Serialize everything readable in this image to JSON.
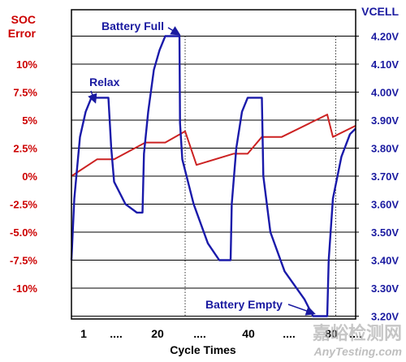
{
  "chart_data": {
    "type": "line",
    "left_axis": {
      "title": [
        "SOC",
        "Error"
      ],
      "ticks": [
        {
          "label": "10%",
          "value": 10
        },
        {
          "label": "7.5%",
          "value": 7.5
        },
        {
          "label": "5%",
          "value": 5
        },
        {
          "label": "2.5%",
          "value": 2.5
        },
        {
          "label": "0%",
          "value": 0
        },
        {
          "label": "-2.5%",
          "value": -2.5
        },
        {
          "label": "-5.0%",
          "value": -5
        },
        {
          "label": "-7.5%",
          "value": -7.5
        },
        {
          "label": "-10%",
          "value": -10
        }
      ],
      "ylim": [
        -12.5,
        12.5
      ],
      "color": "#cc0000"
    },
    "right_axis": {
      "title": "VCELL",
      "ticks": [
        {
          "label": "4.20V",
          "value": 4.2
        },
        {
          "label": "4.10V",
          "value": 4.1
        },
        {
          "label": "4.00V",
          "value": 4.0
        },
        {
          "label": "3.90V",
          "value": 3.9
        },
        {
          "label": "3.80V",
          "value": 3.8
        },
        {
          "label": "3.70V",
          "value": 3.7
        },
        {
          "label": "3.60V",
          "value": 3.6
        },
        {
          "label": "3.50V",
          "value": 3.5
        },
        {
          "label": "3.40V",
          "value": 3.4
        },
        {
          "label": "3.30V",
          "value": 3.3
        },
        {
          "label": "3.20V",
          "value": 3.2
        }
      ],
      "ylim": [
        3.2,
        4.25
      ],
      "color": "#1a1aa0"
    },
    "x_axis": {
      "title": "Cycle Times",
      "ticks": [
        "1",
        "....",
        "20",
        "....",
        "40",
        "....",
        "80",
        "...."
      ],
      "xlim": [
        0,
        100
      ]
    },
    "grid": true,
    "series": [
      {
        "color": "#cc2222",
        "axis": "left",
        "points": [
          [
            0,
            0
          ],
          [
            9,
            1.5
          ],
          [
            15,
            1.5
          ],
          [
            26,
            3
          ],
          [
            33,
            3
          ],
          [
            40,
            4
          ],
          [
            44,
            1
          ],
          [
            57,
            2
          ],
          [
            62,
            2
          ],
          [
            67,
            3.5
          ],
          [
            74,
            3.5
          ],
          [
            90,
            5.5
          ],
          [
            92,
            3.5
          ],
          [
            100,
            4.5
          ]
        ]
      },
      {
        "color": "#1a1aaa",
        "axis": "right",
        "points": [
          [
            0,
            3.4
          ],
          [
            1,
            3.62
          ],
          [
            3,
            3.84
          ],
          [
            5,
            3.93
          ],
          [
            7,
            3.98
          ],
          [
            13,
            3.98
          ],
          [
            14,
            3.8
          ],
          [
            15,
            3.68
          ],
          [
            19,
            3.6
          ],
          [
            23,
            3.57
          ],
          [
            25,
            3.57
          ],
          [
            25.5,
            3.78
          ],
          [
            27,
            3.93
          ],
          [
            29,
            4.08
          ],
          [
            31,
            4.15
          ],
          [
            33,
            4.2
          ],
          [
            38,
            4.2
          ],
          [
            38.2,
            3.89
          ],
          [
            39,
            3.76
          ],
          [
            43,
            3.6
          ],
          [
            48,
            3.46
          ],
          [
            52,
            3.4
          ],
          [
            56,
            3.4
          ],
          [
            56.4,
            3.6
          ],
          [
            58,
            3.8
          ],
          [
            60,
            3.93
          ],
          [
            62,
            3.98
          ],
          [
            67,
            3.98
          ],
          [
            67.5,
            3.7
          ],
          [
            70,
            3.5
          ],
          [
            75,
            3.36
          ],
          [
            82,
            3.26
          ],
          [
            85,
            3.2
          ],
          [
            90,
            3.2
          ],
          [
            90.5,
            3.4
          ],
          [
            92,
            3.62
          ],
          [
            95,
            3.77
          ],
          [
            98,
            3.85
          ],
          [
            100,
            3.87
          ]
        ]
      }
    ],
    "annotations": [
      {
        "text": "Battery Full",
        "at": [
          38,
          4.2
        ]
      },
      {
        "text": "Relax",
        "at": [
          7,
          3.98
        ]
      },
      {
        "text": "Battery Empty",
        "at": [
          85,
          3.2
        ]
      }
    ],
    "reference_lines_x": [
      40,
      93
    ],
    "watermark": [
      "嘉峪检测网",
      "AnyTesting.com"
    ]
  }
}
